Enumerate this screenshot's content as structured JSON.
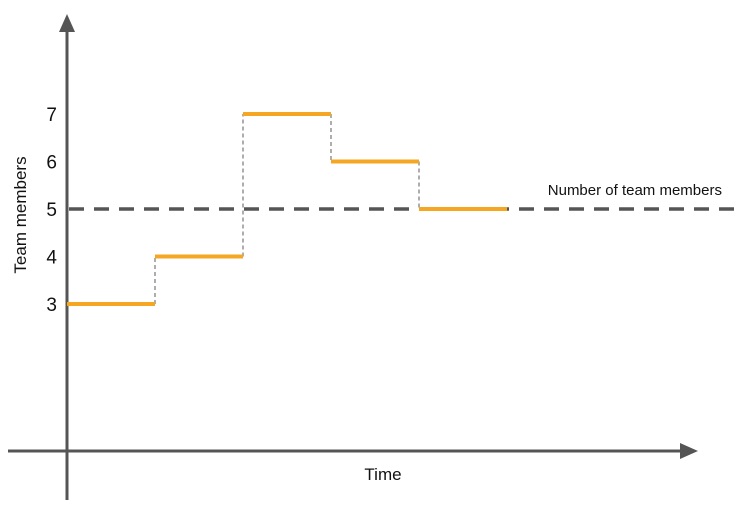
{
  "chart_data": {
    "type": "line",
    "step": true,
    "xlabel": "Time",
    "ylabel": "Team members",
    "yticks": [
      3,
      4,
      5,
      6,
      7
    ],
    "segments": [
      {
        "y": 3
      },
      {
        "y": 4
      },
      {
        "y": 7
      },
      {
        "y": 6
      },
      {
        "y": 5
      }
    ],
    "reference_line": {
      "y": 5,
      "label": "Number of team members"
    },
    "colors": {
      "series": "#f5a623",
      "reference": "#555555",
      "axis": "#555555",
      "connector": "#777777"
    },
    "grid": false
  }
}
